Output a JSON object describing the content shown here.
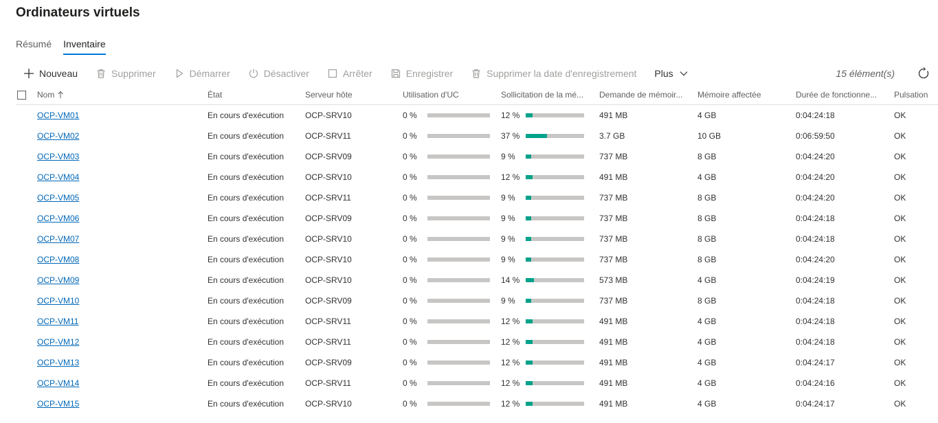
{
  "page": {
    "title": "Ordinateurs virtuels"
  },
  "tabs": [
    {
      "label": "Résumé",
      "active": false
    },
    {
      "label": "Inventaire",
      "active": true
    }
  ],
  "toolbar": {
    "new_label": "Nouveau",
    "delete_label": "Supprimer",
    "start_label": "Démarrer",
    "turnoff_label": "Désactiver",
    "stop_label": "Arrêter",
    "save_label": "Enregistrer",
    "delete_saved_label": "Supprimer la date d'enregistrement",
    "more_label": "Plus",
    "count_label": "15 élément(s)"
  },
  "columns": {
    "name": "Nom",
    "state": "État",
    "host": "Serveur hôte",
    "cpu": "Utilisation d'UC",
    "mem_pressure": "Sollicitation de la mé...",
    "mem_demand": "Demande de mémoir...",
    "mem_assigned": "Mémoire affectée",
    "uptime": "Durée de fonctionne...",
    "heartbeat": "Pulsation"
  },
  "colors": {
    "accent": "#0078d4",
    "link": "#0067b8",
    "bar_fill": "#00a28a",
    "bar_track": "#c8c6c4"
  },
  "rows": [
    {
      "name": "OCP-VM01",
      "state": "En cours d'exécution",
      "host": "OCP-SRV10",
      "cpu": "0 %",
      "cpu_value": 0,
      "mem": "12 %",
      "mem_value": 12,
      "demand": "491 MB",
      "assigned": "4 GB",
      "uptime": "0:04:24:18",
      "heartbeat": "OK"
    },
    {
      "name": "OCP-VM02",
      "state": "En cours d'exécution",
      "host": "OCP-SRV11",
      "cpu": "0 %",
      "cpu_value": 0,
      "mem": "37 %",
      "mem_value": 37,
      "demand": "3.7 GB",
      "assigned": "10 GB",
      "uptime": "0:06:59:50",
      "heartbeat": "OK"
    },
    {
      "name": "OCP-VM03",
      "state": "En cours d'exécution",
      "host": "OCP-SRV09",
      "cpu": "0 %",
      "cpu_value": 0,
      "mem": "9 %",
      "mem_value": 9,
      "demand": "737 MB",
      "assigned": "8 GB",
      "uptime": "0:04:24:20",
      "heartbeat": "OK"
    },
    {
      "name": "OCP-VM04",
      "state": "En cours d'exécution",
      "host": "OCP-SRV10",
      "cpu": "0 %",
      "cpu_value": 0,
      "mem": "12 %",
      "mem_value": 12,
      "demand": "491 MB",
      "assigned": "4 GB",
      "uptime": "0:04:24:20",
      "heartbeat": "OK"
    },
    {
      "name": "OCP-VM05",
      "state": "En cours d'exécution",
      "host": "OCP-SRV11",
      "cpu": "0 %",
      "cpu_value": 0,
      "mem": "9 %",
      "mem_value": 9,
      "demand": "737 MB",
      "assigned": "8 GB",
      "uptime": "0:04:24:20",
      "heartbeat": "OK"
    },
    {
      "name": "OCP-VM06",
      "state": "En cours d'exécution",
      "host": "OCP-SRV09",
      "cpu": "0 %",
      "cpu_value": 0,
      "mem": "9 %",
      "mem_value": 9,
      "demand": "737 MB",
      "assigned": "8 GB",
      "uptime": "0:04:24:18",
      "heartbeat": "OK"
    },
    {
      "name": "OCP-VM07",
      "state": "En cours d'exécution",
      "host": "OCP-SRV10",
      "cpu": "0 %",
      "cpu_value": 0,
      "mem": "9 %",
      "mem_value": 9,
      "demand": "737 MB",
      "assigned": "8 GB",
      "uptime": "0:04:24:18",
      "heartbeat": "OK"
    },
    {
      "name": "OCP-VM08",
      "state": "En cours d'exécution",
      "host": "OCP-SRV10",
      "cpu": "0 %",
      "cpu_value": 0,
      "mem": "9 %",
      "mem_value": 9,
      "demand": "737 MB",
      "assigned": "8 GB",
      "uptime": "0:04:24:20",
      "heartbeat": "OK"
    },
    {
      "name": "OCP-VM09",
      "state": "En cours d'exécution",
      "host": "OCP-SRV10",
      "cpu": "0 %",
      "cpu_value": 0,
      "mem": "14 %",
      "mem_value": 14,
      "demand": "573 MB",
      "assigned": "4 GB",
      "uptime": "0:04:24:19",
      "heartbeat": "OK"
    },
    {
      "name": "OCP-VM10",
      "state": "En cours d'exécution",
      "host": "OCP-SRV09",
      "cpu": "0 %",
      "cpu_value": 0,
      "mem": "9 %",
      "mem_value": 9,
      "demand": "737 MB",
      "assigned": "8 GB",
      "uptime": "0:04:24:18",
      "heartbeat": "OK"
    },
    {
      "name": "OCP-VM11",
      "state": "En cours d'exécution",
      "host": "OCP-SRV11",
      "cpu": "0 %",
      "cpu_value": 0,
      "mem": "12 %",
      "mem_value": 12,
      "demand": "491 MB",
      "assigned": "4 GB",
      "uptime": "0:04:24:18",
      "heartbeat": "OK"
    },
    {
      "name": "OCP-VM12",
      "state": "En cours d'exécution",
      "host": "OCP-SRV11",
      "cpu": "0 %",
      "cpu_value": 0,
      "mem": "12 %",
      "mem_value": 12,
      "demand": "491 MB",
      "assigned": "4 GB",
      "uptime": "0:04:24:18",
      "heartbeat": "OK"
    },
    {
      "name": "OCP-VM13",
      "state": "En cours d'exécution",
      "host": "OCP-SRV09",
      "cpu": "0 %",
      "cpu_value": 0,
      "mem": "12 %",
      "mem_value": 12,
      "demand": "491 MB",
      "assigned": "4 GB",
      "uptime": "0:04:24:17",
      "heartbeat": "OK"
    },
    {
      "name": "OCP-VM14",
      "state": "En cours d'exécution",
      "host": "OCP-SRV11",
      "cpu": "0 %",
      "cpu_value": 0,
      "mem": "12 %",
      "mem_value": 12,
      "demand": "491 MB",
      "assigned": "4 GB",
      "uptime": "0:04:24:16",
      "heartbeat": "OK"
    },
    {
      "name": "OCP-VM15",
      "state": "En cours d'exécution",
      "host": "OCP-SRV10",
      "cpu": "0 %",
      "cpu_value": 0,
      "mem": "12 %",
      "mem_value": 12,
      "demand": "491 MB",
      "assigned": "4 GB",
      "uptime": "0:04:24:17",
      "heartbeat": "OK"
    }
  ]
}
